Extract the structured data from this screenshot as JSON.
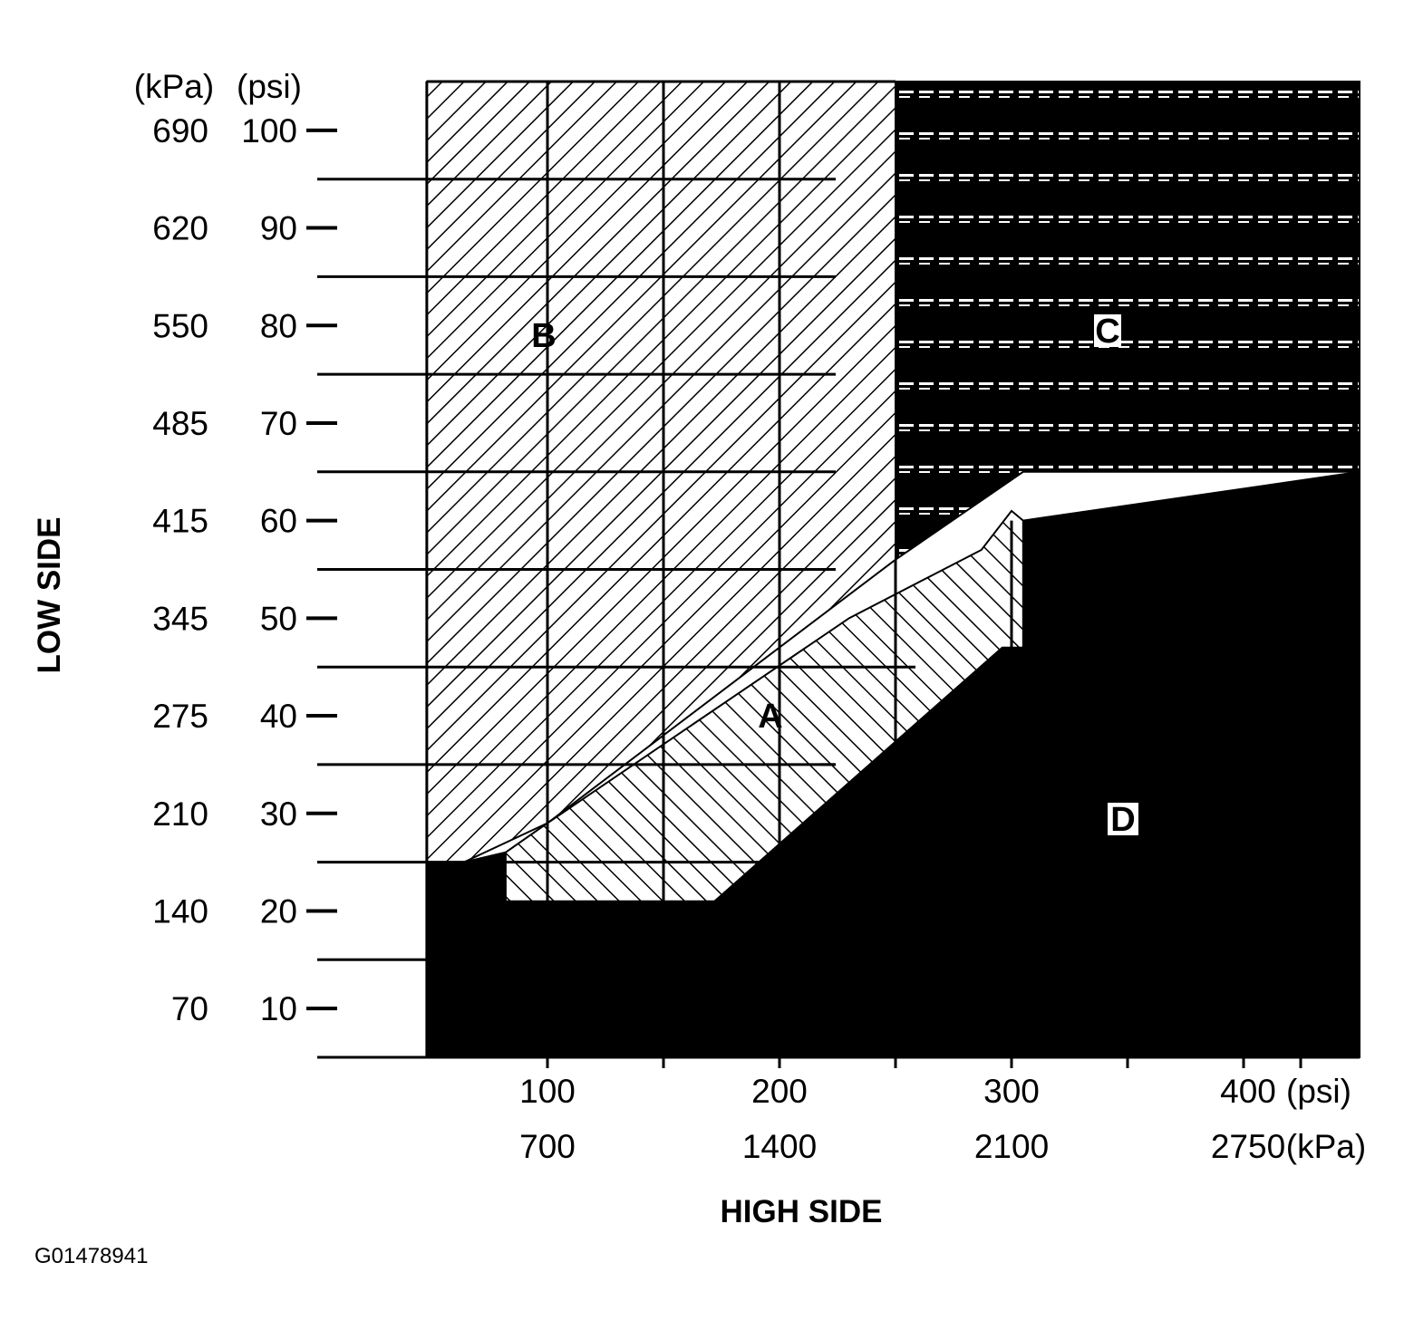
{
  "chart_data": {
    "type": "area",
    "title": "",
    "xlabel": "HIGH SIDE",
    "ylabel": "LOW SIDE",
    "x_axis": {
      "unit_primary": "(psi)",
      "unit_secondary": "(kPa)",
      "ticks_psi": [
        "100",
        "200",
        "300",
        "400"
      ],
      "ticks_kpa": [
        "700",
        "1400",
        "2100",
        "2750"
      ],
      "range_psi": [
        25,
        450
      ]
    },
    "y_axis": {
      "unit_primary": "(kPa)",
      "unit_secondary": "(psi)",
      "ticks_psi": [
        "100",
        "90",
        "80",
        "70",
        "60",
        "50",
        "40",
        "30",
        "20",
        "10"
      ],
      "ticks_kpa": [
        "690",
        "620",
        "550",
        "485",
        "415",
        "345",
        "275",
        "210",
        "140",
        "70"
      ],
      "range_psi": [
        5,
        105
      ]
    },
    "regions": [
      {
        "label": "A",
        "pattern": "diagonal-hatch-backslash",
        "polygon_psi": [
          [
            82,
            21
          ],
          [
            172,
            21
          ],
          [
            296,
            47
          ],
          [
            305,
            47
          ],
          [
            305,
            60
          ],
          [
            300,
            61
          ],
          [
            287,
            57
          ],
          [
            230,
            50
          ],
          [
            100,
            29
          ],
          [
            82,
            26
          ]
        ]
      },
      {
        "label": "B",
        "pattern": "diagonal-hatch-forward",
        "polygon_psi": [
          [
            48,
            25
          ],
          [
            48,
            105
          ],
          [
            250,
            105
          ],
          [
            250,
            56
          ],
          [
            100,
            29
          ],
          [
            64,
            25
          ]
        ]
      },
      {
        "label": "C",
        "pattern": "dashed-on-black",
        "polygon_psi": [
          [
            250,
            105
          ],
          [
            450,
            105
          ],
          [
            450,
            65
          ],
          [
            305,
            65
          ],
          [
            250,
            56
          ]
        ]
      },
      {
        "label": "D",
        "pattern": "solid-black",
        "polygon_psi": [
          [
            48,
            5
          ],
          [
            450,
            5
          ],
          [
            450,
            65
          ],
          [
            305,
            60
          ],
          [
            305,
            47
          ],
          [
            296,
            47
          ],
          [
            172,
            21
          ],
          [
            82,
            21
          ],
          [
            82,
            26
          ],
          [
            64,
            25
          ],
          [
            48,
            25
          ]
        ]
      }
    ],
    "grid": true
  },
  "figure_id": "G01478941",
  "colors": {
    "ink": "#000000",
    "paper": "#ffffff"
  }
}
